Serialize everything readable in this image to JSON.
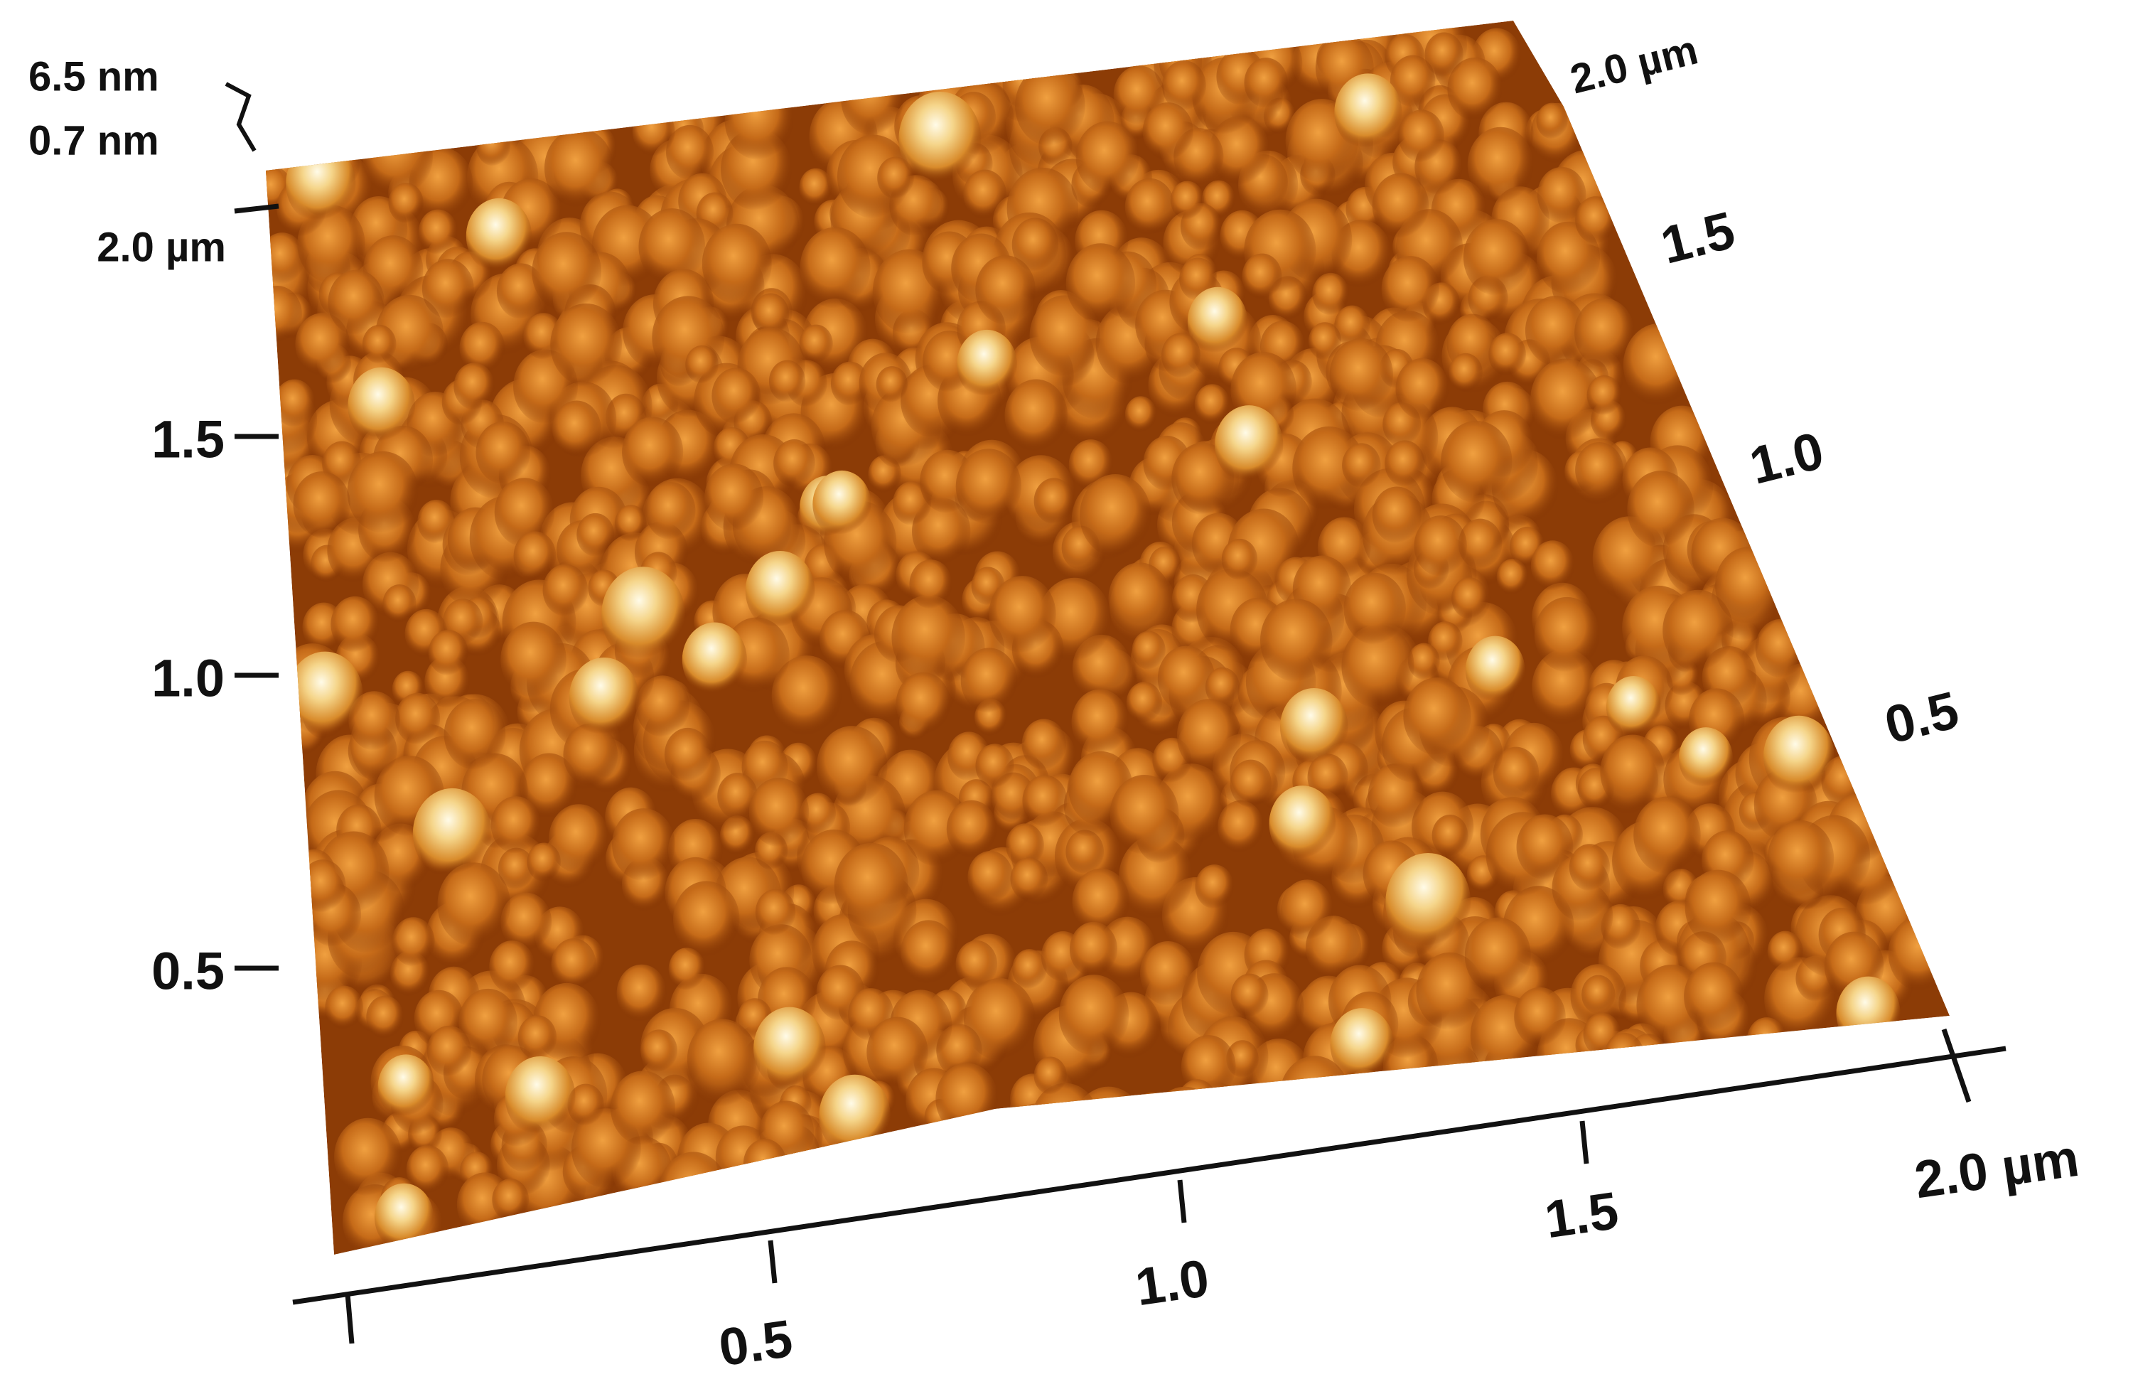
{
  "z_scale": {
    "max": "6.5 nm",
    "min": "0.7 nm"
  },
  "left_axis": {
    "ticks": [
      "2.0 µm",
      "1.5",
      "1.0",
      "0.5"
    ]
  },
  "bottom_axis": {
    "ticks": [
      "0.5",
      "1.0",
      "1.5",
      "2.0 µm"
    ]
  },
  "right_axis": {
    "ticks": [
      "2.0 µm",
      "1.5",
      "1.0",
      "0.5"
    ]
  }
}
